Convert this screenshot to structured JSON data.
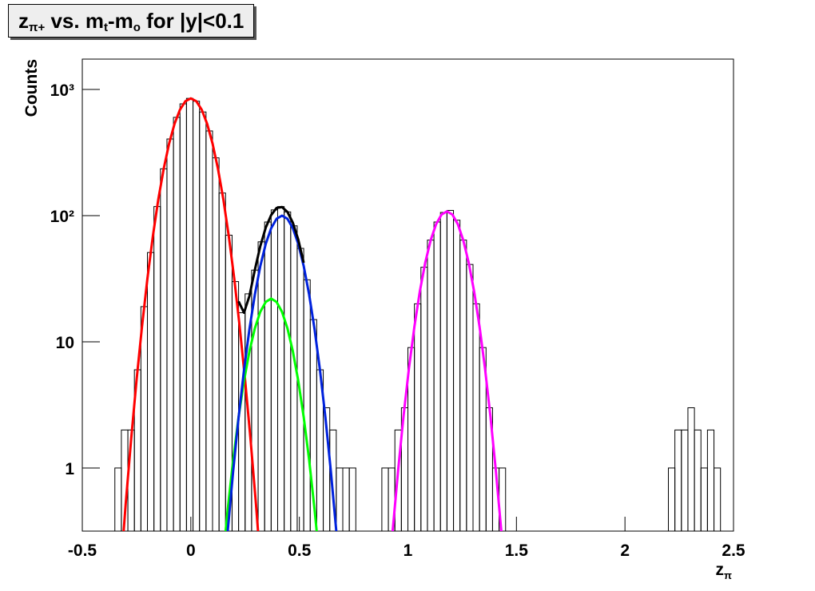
{
  "chart_data": {
    "type": "histogram",
    "title": [
      {
        "text": "z"
      },
      {
        "text": "π+",
        "sub": true
      },
      {
        "text": " vs. m"
      },
      {
        "text": "t",
        "sub": true
      },
      {
        "text": "-m"
      },
      {
        "text": "o",
        "sub": true
      },
      {
        "text": " for |y|<0.1"
      }
    ],
    "x_label": [
      {
        "text": "z"
      },
      {
        "text": "π",
        "sub": true
      }
    ],
    "y_label": "Counts",
    "log_scale": true,
    "xlim": [
      -0.5,
      2.5
    ],
    "ylim": [
      0.316,
      1740
    ],
    "xticks": [
      -0.5,
      0,
      0.5,
      1,
      1.5,
      2,
      2.5
    ],
    "yticks": [
      1,
      10,
      {
        "value": 100,
        "label": "10²"
      },
      {
        "value": 1000,
        "label": "10³"
      }
    ],
    "color": "#000000",
    "bins": [
      -0.5,
      -0.47,
      -0.44,
      -0.41,
      -0.38,
      -0.35,
      -0.32,
      -0.29,
      -0.26,
      -0.23,
      -0.2,
      -0.17,
      -0.14,
      -0.11,
      -0.08,
      -0.05,
      -0.02,
      0.01,
      0.04,
      0.07,
      0.1,
      0.13,
      0.16,
      0.19,
      0.22,
      0.25,
      0.28,
      0.31,
      0.34,
      0.37,
      0.4,
      0.43,
      0.46,
      0.49,
      0.52,
      0.55,
      0.58,
      0.61,
      0.64,
      0.67,
      0.7,
      0.73,
      0.76,
      0.79,
      0.82,
      0.85,
      0.88,
      0.91,
      0.94,
      0.97,
      1,
      1.03,
      1.06,
      1.09,
      1.12,
      1.15,
      1.18,
      1.21,
      1.24,
      1.27,
      1.3,
      1.33,
      1.36,
      1.39,
      1.42,
      1.45,
      1.48,
      1.51,
      1.54,
      1.57,
      1.6,
      1.63,
      1.66,
      1.69,
      1.72,
      1.75,
      1.78,
      1.81,
      1.84,
      1.87,
      1.9,
      1.93,
      1.96,
      1.99,
      2.02,
      2.05,
      2.08,
      2.11,
      2.14,
      2.17,
      2.2,
      2.23,
      2.26,
      2.29,
      2.32,
      2.35,
      2.38,
      2.41,
      2.44,
      2.47,
      2.5
    ],
    "values": [
      0,
      0,
      0,
      0,
      0,
      1,
      2,
      2,
      6,
      19,
      51,
      118,
      235,
      405,
      601,
      769,
      850,
      807,
      663,
      469,
      287,
      151,
      70,
      30,
      17,
      24,
      37,
      62,
      89,
      111,
      118,
      107,
      83,
      55,
      31,
      15,
      6,
      3,
      2,
      1,
      1,
      1,
      0,
      0,
      0,
      0,
      1,
      1,
      2,
      3,
      9,
      20,
      39,
      64,
      89,
      106,
      110,
      92,
      64,
      41,
      20,
      9,
      3,
      1,
      1,
      0,
      0,
      0,
      0,
      0,
      0,
      0,
      0,
      0,
      0,
      0,
      0,
      0,
      0,
      0,
      0,
      0,
      0,
      0,
      0,
      0,
      0,
      0,
      0,
      0,
      1,
      2,
      2,
      3,
      2,
      1,
      2,
      1,
      0,
      0
    ],
    "fits": [
      {
        "color": "#ff0000",
        "x": [
          -0.325,
          -0.3,
          -0.275,
          -0.25,
          -0.225,
          -0.2,
          -0.175,
          -0.15,
          -0.125,
          -0.1,
          -0.075,
          -0.05,
          -0.025,
          0,
          0.025,
          0.05,
          0.075,
          0.1,
          0.125,
          0.15,
          0.175,
          0.2,
          0.225,
          0.25,
          0.275,
          0.3,
          0.325
        ],
        "values": [
          0.14,
          0.52,
          1.69,
          4.98,
          13.2,
          31.7,
          68.5,
          134,
          235,
          373,
          535,
          692,
          807,
          850,
          807,
          692,
          535,
          373,
          235,
          134,
          68.5,
          31.7,
          13.2,
          4.98,
          1.69,
          0.52,
          0.14
        ]
      },
      {
        "color": "#00ff00",
        "x": [
          0.145,
          0.17,
          0.195,
          0.22,
          0.245,
          0.27,
          0.295,
          0.32,
          0.345,
          0.37,
          0.395,
          0.42,
          0.445,
          0.47,
          0.495,
          0.52,
          0.545,
          0.57,
          0.595
        ],
        "values": [
          0.17,
          0.47,
          1.16,
          2.53,
          4.9,
          8.41,
          12.8,
          17.3,
          20.7,
          22,
          20.7,
          17.3,
          12.8,
          8.41,
          4.9,
          2.53,
          1.16,
          0.47,
          0.17
        ]
      },
      {
        "color": "#0022dd",
        "x": [
          0.145,
          0.17,
          0.195,
          0.22,
          0.245,
          0.27,
          0.295,
          0.32,
          0.345,
          0.37,
          0.395,
          0.42,
          0.445,
          0.47,
          0.495,
          0.52,
          0.545,
          0.57,
          0.595,
          0.62,
          0.645,
          0.67,
          0.695
        ],
        "values": [
          0.095,
          0.317,
          0.945,
          2.51,
          5.96,
          12.6,
          23.7,
          39.8,
          59.6,
          79.4,
          94.4,
          100,
          94.4,
          79.4,
          59.6,
          39.8,
          23.7,
          12.6,
          5.96,
          2.51,
          0.945,
          0.317,
          0.095
        ]
      },
      {
        "color": "#000000",
        "x": [
          0.22,
          0.245,
          0.27,
          0.295,
          0.32,
          0.345,
          0.37,
          0.395,
          0.42,
          0.445,
          0.47,
          0.495,
          0.52
        ],
        "values": [
          20.9,
          17,
          23.1,
          37.2,
          57.3,
          80.3,
          101,
          115,
          117,
          107,
          87.8,
          64.5,
          42.3
        ]
      },
      {
        "color": "#ff00ff",
        "x": [
          0.905,
          0.93,
          0.955,
          0.98,
          1.005,
          1.03,
          1.055,
          1.08,
          1.105,
          1.13,
          1.155,
          1.18,
          1.205,
          1.23,
          1.255,
          1.28,
          1.305,
          1.33,
          1.355,
          1.38,
          1.405,
          1.43,
          1.455
        ],
        "values": [
          0.093,
          0.32,
          0.96,
          2.59,
          6.2,
          13.2,
          25.1,
          42.5,
          63.9,
          85.6,
          102,
          108,
          102,
          85.6,
          63.9,
          42.5,
          25.1,
          13.2,
          6.2,
          2.59,
          0.96,
          0.32,
          0.093
        ]
      }
    ]
  }
}
